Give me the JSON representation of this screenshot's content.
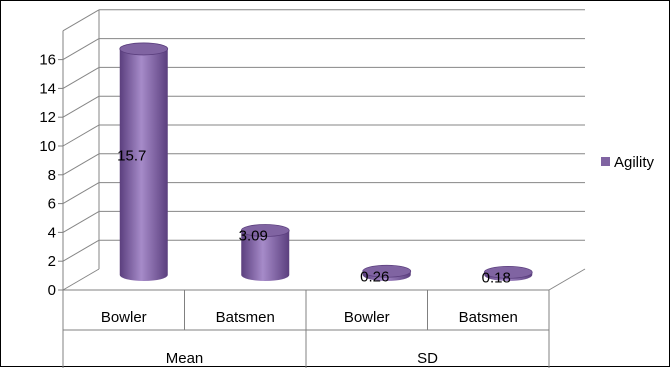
{
  "chart_data": {
    "type": "bar",
    "style": "3d-cylinder",
    "categories": [
      "Bowler",
      "Batsmen",
      "Bowler",
      "Batsmen"
    ],
    "groups": [
      {
        "label": "Mean",
        "span": [
          0,
          1
        ]
      },
      {
        "label": "SD",
        "span": [
          2,
          3
        ]
      }
    ],
    "series": [
      {
        "name": "Agility",
        "values": [
          15.7,
          3.09,
          0.26,
          0.18
        ]
      }
    ],
    "data_labels": [
      "15.7",
      "3.09",
      "0.26",
      "0.18"
    ],
    "yticks": [
      "0",
      "2",
      "4",
      "6",
      "8",
      "10",
      "12",
      "14",
      "16"
    ],
    "ylim": [
      0,
      18
    ],
    "grid": true,
    "legend_position": "right",
    "colors": {
      "bar": "#8064A2",
      "bar_dark": "#5B3F7E",
      "bar_light": "#A68BC9",
      "grid": "#868686",
      "axis": "#808080"
    }
  }
}
